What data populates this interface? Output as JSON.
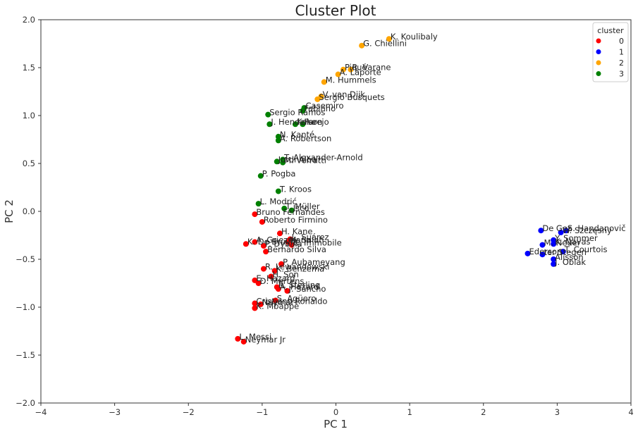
{
  "chart_data": {
    "type": "scatter",
    "title": "Cluster Plot",
    "xlabel": "PC 1",
    "ylabel": "PC 2",
    "xlim": [
      -4,
      4
    ],
    "ylim": [
      -2,
      2
    ],
    "xticks": [
      "−4",
      "−3",
      "−2",
      "−1",
      "0",
      "1",
      "2",
      "3",
      "4"
    ],
    "yticks": [
      "−2.0",
      "−1.5",
      "−1.0",
      "−0.5",
      "0.0",
      "0.5",
      "1.0",
      "1.5",
      "2.0"
    ],
    "grid": false,
    "legend": {
      "title": "cluster",
      "position": "top-right",
      "entries": [
        {
          "name": "0",
          "color": "#ff0000"
        },
        {
          "name": "1",
          "color": "#0000ff"
        },
        {
          "name": "2",
          "color": "#ffa500"
        },
        {
          "name": "3",
          "color": "#008000"
        }
      ]
    },
    "points": [
      {
        "label": "K. Koulibaly",
        "x": 0.72,
        "y": 1.8,
        "cluster": 2
      },
      {
        "label": "G. Chiellini",
        "x": 0.35,
        "y": 1.73,
        "cluster": 2
      },
      {
        "label": "Piqué",
        "x": 0.1,
        "y": 1.48,
        "cluster": 2
      },
      {
        "label": "R. Varane",
        "x": 0.2,
        "y": 1.48,
        "cluster": 2
      },
      {
        "label": "A. Laporte",
        "x": 0.03,
        "y": 1.43,
        "cluster": 2
      },
      {
        "label": "M. Hummels",
        "x": -0.16,
        "y": 1.35,
        "cluster": 2
      },
      {
        "label": "V. van Dijk",
        "x": -0.2,
        "y": 1.2,
        "cluster": 2
      },
      {
        "label": "Sergio Busquets",
        "x": -0.25,
        "y": 1.17,
        "cluster": 2
      },
      {
        "label": "Casemiro",
        "x": -0.43,
        "y": 1.08,
        "cluster": 3
      },
      {
        "label": "Fabinho",
        "x": -0.45,
        "y": 1.05,
        "cluster": 3
      },
      {
        "label": "Sergio Ramos",
        "x": -0.92,
        "y": 1.01,
        "cluster": 3
      },
      {
        "label": "J. Henderson",
        "x": -0.9,
        "y": 0.91,
        "cluster": 3
      },
      {
        "label": "Koke",
        "x": -0.55,
        "y": 0.91,
        "cluster": 3
      },
      {
        "label": "Parejo",
        "x": -0.45,
        "y": 0.91,
        "cluster": 3
      },
      {
        "label": "N. Kanté",
        "x": -0.78,
        "y": 0.78,
        "cluster": 3
      },
      {
        "label": "A. Robertson",
        "x": -0.78,
        "y": 0.74,
        "cluster": 3
      },
      {
        "label": "T. Alexander-Arnold",
        "x": -0.72,
        "y": 0.54,
        "cluster": 3
      },
      {
        "label": "Jordi Alba",
        "x": -0.8,
        "y": 0.52,
        "cluster": 3
      },
      {
        "label": "M. Verratti",
        "x": -0.72,
        "y": 0.51,
        "cluster": 3
      },
      {
        "label": "P. Pogba",
        "x": -1.02,
        "y": 0.37,
        "cluster": 3
      },
      {
        "label": "T. Kroos",
        "x": -0.78,
        "y": 0.21,
        "cluster": 3
      },
      {
        "label": "L. Modrić",
        "x": -1.05,
        "y": 0.08,
        "cluster": 3
      },
      {
        "label": "T. Müller",
        "x": -0.7,
        "y": 0.03,
        "cluster": 3
      },
      {
        "label": "Isco",
        "x": -0.6,
        "y": 0.01,
        "cluster": 3
      },
      {
        "label": "Bruno Fernandes",
        "x": -1.1,
        "y": -0.03,
        "cluster": 0
      },
      {
        "label": "Roberto Firmino",
        "x": -1.0,
        "y": -0.11,
        "cluster": 0
      },
      {
        "label": "H. Kane",
        "x": -0.76,
        "y": -0.23,
        "cluster": 0
      },
      {
        "label": "L. Suárez",
        "x": -0.62,
        "y": -0.29,
        "cluster": 0
      },
      {
        "label": "A. Griezmann",
        "x": -1.1,
        "y": -0.32,
        "cluster": 0
      },
      {
        "label": "M. Salah",
        "x": -0.65,
        "y": -0.32,
        "cluster": 0
      },
      {
        "label": "K. De Bruyne",
        "x": -1.22,
        "y": -0.34,
        "cluster": 0
      },
      {
        "label": "P. Dybala",
        "x": -0.98,
        "y": -0.36,
        "cluster": 0
      },
      {
        "label": "C. Immobile",
        "x": -0.6,
        "y": -0.35,
        "cluster": 0
      },
      {
        "label": "Bernardo Silva",
        "x": -0.95,
        "y": -0.42,
        "cluster": 0
      },
      {
        "label": "P. Aubameyang",
        "x": -0.74,
        "y": -0.55,
        "cluster": 0
      },
      {
        "label": "R. Lewandowski",
        "x": -0.98,
        "y": -0.6,
        "cluster": 0
      },
      {
        "label": "K. Benzema",
        "x": -0.83,
        "y": -0.62,
        "cluster": 0
      },
      {
        "label": "H. Son",
        "x": -0.88,
        "y": -0.68,
        "cluster": 0
      },
      {
        "label": "E. Hazard",
        "x": -1.1,
        "y": -0.72,
        "cluster": 0
      },
      {
        "label": "D. Mertens",
        "x": -1.05,
        "y": -0.75,
        "cluster": 0
      },
      {
        "label": "R. Sterling",
        "x": -0.8,
        "y": -0.79,
        "cluster": 0
      },
      {
        "label": "A. Hazard",
        "x": -0.78,
        "y": -0.81,
        "cluster": 0
      },
      {
        "label": "J. Sancho",
        "x": -0.66,
        "y": -0.83,
        "cluster": 0
      },
      {
        "label": "S. Agüero",
        "x": -0.82,
        "y": -0.93,
        "cluster": 0
      },
      {
        "label": "Cristiano Ronaldo",
        "x": -1.1,
        "y": -0.96,
        "cluster": 0
      },
      {
        "label": "Neymar",
        "x": -1.02,
        "y": -0.97,
        "cluster": 0
      },
      {
        "label": "K. Mbappé",
        "x": -1.1,
        "y": -1.01,
        "cluster": 0
      },
      {
        "label": "L. Messi",
        "x": -1.33,
        "y": -1.33,
        "cluster": 0
      },
      {
        "label": "Neymar Jr",
        "x": -1.25,
        "y": -1.36,
        "cluster": 0
      },
      {
        "label": "De Gea",
        "x": 2.78,
        "y": -0.2,
        "cluster": 1
      },
      {
        "label": "S. Handanovič",
        "x": 3.12,
        "y": -0.2,
        "cluster": 1
      },
      {
        "label": "W. Szczęsny",
        "x": 3.05,
        "y": -0.22,
        "cluster": 1
      },
      {
        "label": "Y. Sommer",
        "x": 2.95,
        "y": -0.3,
        "cluster": 1
      },
      {
        "label": "K. Navas",
        "x": 2.95,
        "y": -0.34,
        "cluster": 1
      },
      {
        "label": "M. Neuer",
        "x": 2.8,
        "y": -0.35,
        "cluster": 1
      },
      {
        "label": "T. Courtois",
        "x": 3.08,
        "y": -0.42,
        "cluster": 1
      },
      {
        "label": "Ederson",
        "x": 2.6,
        "y": -0.44,
        "cluster": 1
      },
      {
        "label": "ter Stegen",
        "x": 2.8,
        "y": -0.45,
        "cluster": 1
      },
      {
        "label": "Alisson",
        "x": 2.95,
        "y": -0.5,
        "cluster": 1
      },
      {
        "label": "J. Oblak",
        "x": 2.95,
        "y": -0.55,
        "cluster": 1
      }
    ]
  }
}
